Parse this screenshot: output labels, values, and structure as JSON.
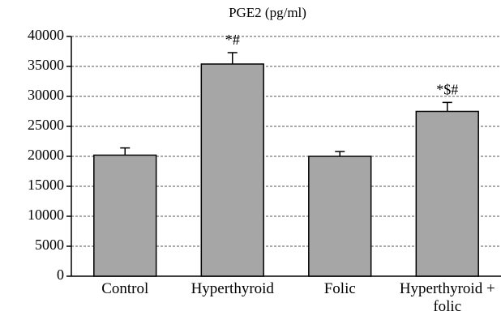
{
  "chart_data": {
    "type": "bar",
    "title": "PGE2 (pg/ml)",
    "categories": [
      "Control",
      "Hyperthyroid",
      "Folic",
      "Hyperthyroid + folic"
    ],
    "values": [
      20200,
      35400,
      20000,
      27500
    ],
    "errors": [
      1200,
      1900,
      800,
      1500
    ],
    "annotations": [
      null,
      "*#",
      null,
      "*$#"
    ],
    "color": "#a6a6a6",
    "ylim": [
      0,
      40000
    ],
    "yticks": [
      0,
      5000,
      10000,
      15000,
      20000,
      25000,
      30000,
      35000,
      40000
    ],
    "grid": true
  }
}
